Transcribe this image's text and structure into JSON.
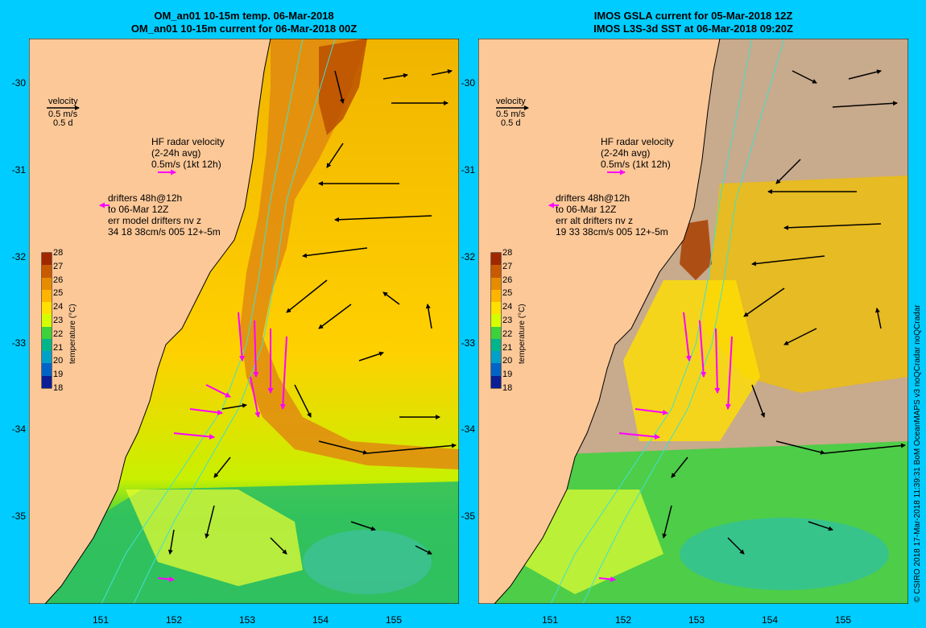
{
  "left_panel": {
    "title_line1": "OM_an01 10-15m temp. 06-Mar-2018",
    "title_line2": "OM_an01 10-15m current for 06-Mar-2018 00Z",
    "velocity_label": "velocity",
    "velocity_scale": "0.5 m/s",
    "velocity_time": "0.5 d",
    "hf_label": "HF radar velocity",
    "hf_avg": "(2-24h avg)",
    "hf_scale": "0.5m/s (1kt 12h)",
    "drifters_line1": "drifters 48h@12h",
    "drifters_line2": "to 06-Mar 12Z",
    "drifters_line3": "err model drifters nv z",
    "drifters_line4": "34 18 38cm/s 005 12+-5m"
  },
  "right_panel": {
    "title_line1": "IMOS GSLA current for 05-Mar-2018 12Z",
    "title_line2": "IMOS L3S-3d SST at 06-Mar-2018 09:20Z",
    "velocity_label": "velocity",
    "velocity_scale": "0.5 m/s",
    "velocity_time": "0.5 d",
    "hf_label": "HF radar velocity",
    "hf_avg": "(2-24h avg)",
    "hf_scale": "0.5m/s (1kt 12h)",
    "drifters_line1": "drifters 48h@12h",
    "drifters_line2": "to 06-Mar 12Z",
    "drifters_line3": "err alt drifters nv z",
    "drifters_line4": "19 33 38cm/s 005 12+-5m"
  },
  "axes": {
    "lat_ticks": [
      "-30",
      "-31",
      "-32",
      "-33",
      "-34",
      "-35"
    ],
    "lon_ticks": [
      "151",
      "152",
      "153",
      "154",
      "155"
    ]
  },
  "colorbar": {
    "label": "temperature (°C)",
    "ticks": [
      "28",
      "27",
      "26",
      "25",
      "24",
      "23",
      "22",
      "21",
      "20",
      "19",
      "18"
    ],
    "colors": [
      "#a02800",
      "#c85a00",
      "#e68c00",
      "#ffb400",
      "#ffe000",
      "#d4ff00",
      "#3cd23c",
      "#00b48c",
      "#00a0c8",
      "#0064c8",
      "#0a1e96"
    ]
  },
  "colors": {
    "land": "#fcc898",
    "background": "#00ccff",
    "model_arrows": "#000000",
    "radar_arrows": "#ff00ff",
    "isobath": "#40e0d0",
    "missing_sst": "#c8aa8c"
  },
  "credit": "© CSIRO 2018  17-Mar-2018 11:39:31 BoM OceanMAPS v3 noQCradar noQCradar"
}
